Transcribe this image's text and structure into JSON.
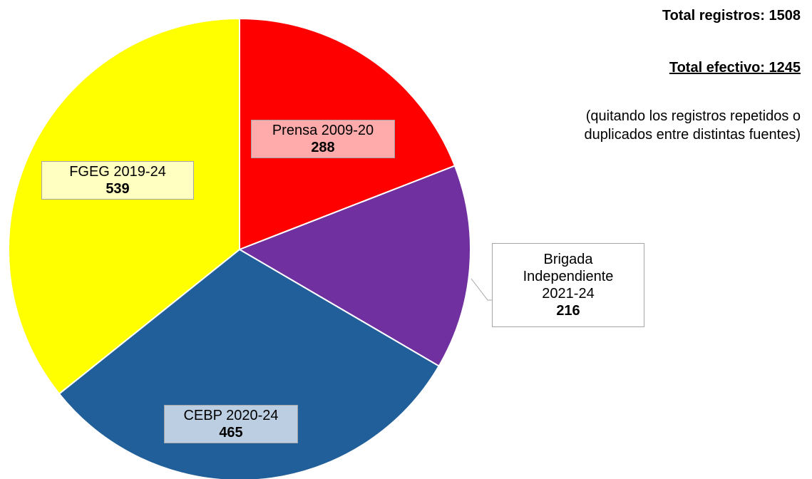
{
  "chart_data": {
    "type": "pie",
    "categories": [
      "Prensa 2009-20",
      "Brigada Independiente 2021-24",
      "CEBP 2020-24",
      "FGEG 2019-24"
    ],
    "values": [
      288,
      216,
      465,
      539
    ],
    "colors": [
      "#ff0000",
      "#7030a0",
      "#215f9a",
      "#ffff00"
    ],
    "label_colors": [
      "#ffabab",
      "#ffffff",
      "#bccfe2",
      "#ffffc2"
    ],
    "annotations": [
      "Total registros: 1508",
      "Total efectivo: 1245",
      "(quitando los registros repetidos o duplicados entre distintas fuentes)"
    ]
  }
}
